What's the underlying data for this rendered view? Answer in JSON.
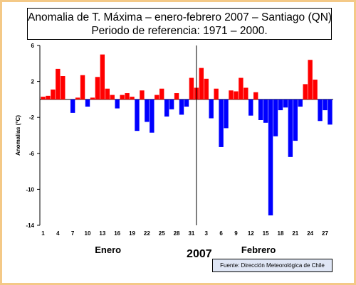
{
  "chart_data": {
    "type": "bar",
    "title": "Anomalia de T. Máxima – enero-febrero 2007 – Santiago (QN)",
    "subtitle": "Periodo de referencia: 1971 – 2000.",
    "ylabel": "Anomalias (°C)",
    "xlabel": "2007",
    "ylim": [
      -14,
      6
    ],
    "y_ticks": [
      "6",
      "2",
      "-2",
      "-6",
      "-10",
      "-14"
    ],
    "y_tick_values": [
      6,
      2,
      -2,
      -6,
      -10,
      -14
    ],
    "month_labels": [
      "Enero",
      "Febrero"
    ],
    "positive_color": "#ff0000",
    "negative_color": "#0000ff",
    "series": [
      {
        "month": "Enero",
        "x_ticks": [
          "1",
          "4",
          "7",
          "10",
          "13",
          "16",
          "19",
          "22",
          "25",
          "28",
          "31"
        ],
        "x_tick_days": [
          1,
          4,
          7,
          10,
          13,
          16,
          19,
          22,
          25,
          28,
          31
        ],
        "days": [
          1,
          2,
          3,
          4,
          5,
          6,
          7,
          8,
          9,
          10,
          11,
          12,
          13,
          14,
          15,
          16,
          17,
          18,
          19,
          20,
          21,
          22,
          23,
          24,
          25,
          26,
          27,
          28,
          29,
          30,
          31
        ],
        "values": [
          0.3,
          0.4,
          1.1,
          3.4,
          2.6,
          0.0,
          -1.5,
          0.2,
          2.7,
          -0.8,
          0.2,
          2.5,
          5.0,
          1.2,
          0.5,
          -1.0,
          0.5,
          0.7,
          0.3,
          -3.5,
          1.0,
          -2.5,
          -3.7,
          0.5,
          1.2,
          -1.9,
          -1.1,
          0.7,
          -1.7,
          -0.8,
          2.4
        ]
      },
      {
        "month": "Febrero",
        "x_ticks": [
          "3",
          "6",
          "9",
          "12",
          "15",
          "18",
          "21",
          "24",
          "27"
        ],
        "x_tick_days": [
          3,
          6,
          9,
          12,
          15,
          18,
          21,
          24,
          27
        ],
        "days": [
          1,
          2,
          3,
          4,
          5,
          6,
          7,
          8,
          9,
          10,
          11,
          12,
          13,
          14,
          15,
          16,
          17,
          18,
          19,
          20,
          21,
          22,
          23,
          24,
          25,
          26,
          27,
          28
        ],
        "values": [
          1.3,
          3.5,
          2.3,
          -2.1,
          1.2,
          -5.3,
          -3.2,
          1.0,
          0.9,
          2.4,
          1.3,
          -1.8,
          0.8,
          -2.3,
          -2.6,
          -12.9,
          -4.1,
          -1.2,
          -0.9,
          -6.4,
          -4.6,
          -0.8,
          1.7,
          4.4,
          2.2,
          -2.4,
          -1.2,
          -2.8
        ]
      }
    ],
    "grid": false,
    "legend": "none"
  },
  "source": "Fuente: Dirección Meteorológica de Chile"
}
